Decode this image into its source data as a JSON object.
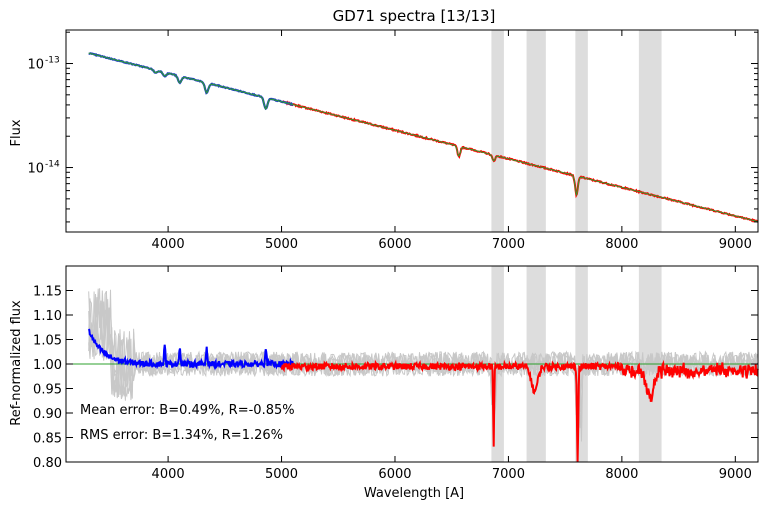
{
  "chart_data": [
    {
      "type": "line",
      "title": "GD71 spectra [13/13]",
      "xlabel": "",
      "ylabel": "Flux",
      "yscale": "log",
      "xlim": [
        3100,
        9200
      ],
      "ylim": [
        2.4e-15,
        2.1e-13
      ],
      "xticks": [
        4000,
        5000,
        6000,
        7000,
        8000,
        9000
      ],
      "xtick_labels": [
        "4000",
        "5000",
        "6000",
        "7000",
        "8000",
        "9000"
      ],
      "yticks": [
        1e-13,
        1e-14
      ],
      "ytick_labels": [
        {
          "base": "10",
          "exp": "-13"
        },
        {
          "base": "10",
          "exp": "-14"
        }
      ],
      "grid": false,
      "shaded_bands": [
        [
          6850,
          6960
        ],
        [
          7160,
          7330
        ],
        [
          7590,
          7700
        ],
        [
          8150,
          8350
        ]
      ],
      "continuum": {
        "x0": 3300,
        "x1": 9200,
        "logy0": -12.9,
        "logy1": -14.52
      },
      "series": [
        {
          "color": "#1f3fbf",
          "x_range": [
            3300,
            5100
          ]
        },
        {
          "color": "#ff0000",
          "x_range": [
            5000,
            9200
          ]
        },
        {
          "color": "#2ca02c",
          "x_range": [
            3300,
            9200
          ]
        }
      ],
      "absorption_lines": [
        {
          "x": 3889,
          "depth": 0.06
        },
        {
          "x": 3970,
          "depth": 0.08
        },
        {
          "x": 4102,
          "depth": 0.14
        },
        {
          "x": 4340,
          "depth": 0.2
        },
        {
          "x": 4861,
          "depth": 0.22
        },
        {
          "x": 6563,
          "depth": 0.2
        },
        {
          "x": 6870,
          "depth": 0.12
        },
        {
          "x": 7600,
          "depth": 0.35
        }
      ]
    },
    {
      "type": "line",
      "title": "",
      "xlabel": "Wavelength [A]",
      "ylabel": "Ref-normalized flux",
      "xlim": [
        3100,
        9200
      ],
      "ylim": [
        0.8,
        1.2
      ],
      "xticks": [
        4000,
        5000,
        6000,
        7000,
        8000,
        9000
      ],
      "xtick_labels": [
        "4000",
        "5000",
        "6000",
        "7000",
        "8000",
        "9000"
      ],
      "yticks": [
        0.8,
        0.85,
        0.9,
        0.95,
        1.0,
        1.05,
        1.1,
        1.15
      ],
      "ytick_labels": [
        "0.80",
        "0.85",
        "0.90",
        "0.95",
        "1.00",
        "1.05",
        "1.10",
        "1.15"
      ],
      "grid": false,
      "reference_line": {
        "y": 1.0,
        "color": "#2ca02c"
      },
      "shaded_bands": [
        [
          6850,
          6960
        ],
        [
          7160,
          7330
        ],
        [
          7590,
          7700
        ],
        [
          8150,
          8350
        ]
      ],
      "series": [
        {
          "color": "#0000ff",
          "x_range": [
            3300,
            5100
          ]
        },
        {
          "color": "#ff0000",
          "x_range": [
            5000,
            9200
          ]
        }
      ],
      "annotations": [
        {
          "text": "Mean error: B=0.49%, R=-0.85%"
        },
        {
          "text": "RMS error: B=1.34%, R=1.26%"
        }
      ]
    }
  ]
}
